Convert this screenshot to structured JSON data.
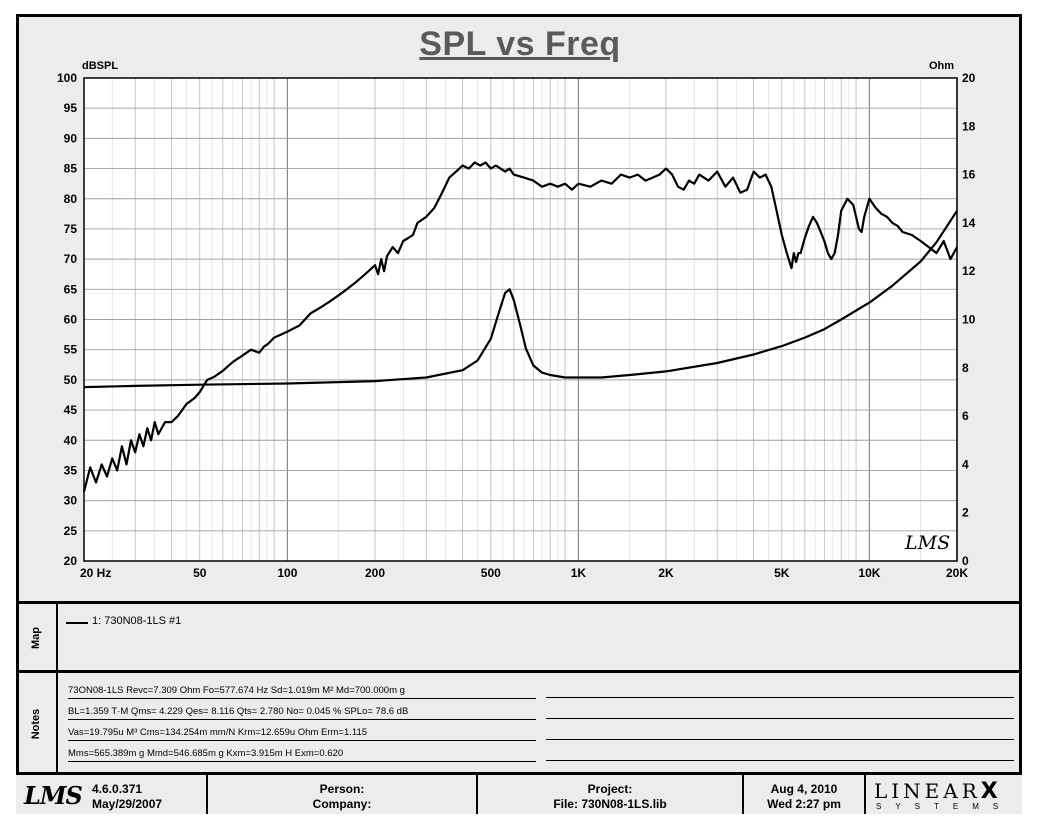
{
  "chart_data": {
    "type": "line",
    "title": "SPL vs Freq",
    "ylabel": "dBSPL",
    "y2label": "Ohm",
    "xscale": "log",
    "xlim": [
      20,
      20000
    ],
    "ylim": [
      20,
      100
    ],
    "y2lim": [
      0,
      20
    ],
    "grid": true,
    "x_tick_labels": [
      "20 Hz",
      "50",
      "100",
      "200",
      "500",
      "1K",
      "2K",
      "5K",
      "10K",
      "20K"
    ],
    "x_tick_values": [
      20,
      50,
      100,
      200,
      500,
      1000,
      2000,
      5000,
      10000,
      20000
    ],
    "y_ticks": [
      20,
      25,
      30,
      35,
      40,
      45,
      50,
      55,
      60,
      65,
      70,
      75,
      80,
      85,
      90,
      95,
      100
    ],
    "y2_ticks": [
      0,
      2,
      4,
      6,
      8,
      10,
      12,
      14,
      16,
      18,
      20
    ],
    "series": [
      {
        "name": "1: 730N08-1LS #1",
        "axis": "left",
        "x": [
          20,
          21,
          22,
          23,
          24,
          25,
          26,
          27,
          28,
          29,
          30,
          31,
          32,
          33,
          34,
          35,
          36,
          38,
          40,
          42,
          45,
          48,
          50,
          53,
          56,
          60,
          65,
          70,
          75,
          80,
          83,
          86,
          90,
          95,
          100,
          110,
          120,
          130,
          140,
          150,
          160,
          170,
          180,
          190,
          195,
          200,
          205,
          210,
          215,
          220,
          230,
          240,
          250,
          260,
          270,
          280,
          300,
          320,
          340,
          360,
          380,
          400,
          420,
          440,
          460,
          480,
          500,
          520,
          540,
          560,
          580,
          600,
          650,
          700,
          750,
          800,
          850,
          900,
          950,
          1000,
          1100,
          1200,
          1300,
          1400,
          1500,
          1600,
          1700,
          1800,
          1900,
          2000,
          2100,
          2200,
          2300,
          2400,
          2500,
          2600,
          2800,
          3000,
          3200,
          3400,
          3600,
          3800,
          4000,
          4200,
          4400,
          4600,
          4800,
          5000,
          5200,
          5400,
          5500,
          5600,
          5700,
          5800,
          6000,
          6200,
          6400,
          6600,
          6800,
          7000,
          7200,
          7400,
          7600,
          7800,
          8000,
          8200,
          8400,
          8600,
          8800,
          9000,
          9200,
          9400,
          9600,
          9800,
          10000,
          10500,
          11000,
          11500,
          12000,
          12500,
          13000,
          14000,
          15000,
          16000,
          17000,
          18000,
          19000,
          20000
        ],
        "values": [
          31.5,
          35.5,
          33,
          36,
          34,
          37,
          35,
          39,
          36,
          40,
          38,
          41,
          39,
          42,
          40,
          43,
          41,
          43,
          43,
          44,
          46,
          47,
          48,
          50,
          50.5,
          51.5,
          53,
          54,
          55,
          54.5,
          55.5,
          56,
          57,
          57.5,
          58,
          59,
          61,
          62,
          63,
          64,
          65,
          66,
          67,
          68,
          68.5,
          69,
          67.5,
          70,
          68,
          70.5,
          72,
          71,
          73,
          73.5,
          74,
          76,
          77,
          78.5,
          81,
          83.5,
          84.5,
          85.5,
          85,
          86,
          85.5,
          86,
          85,
          85.5,
          85,
          84.5,
          85,
          84,
          83.5,
          83,
          82,
          82.5,
          82,
          82.5,
          81.5,
          82.5,
          82,
          83,
          82.5,
          84,
          83.5,
          84,
          83,
          83.5,
          84,
          85,
          84,
          82,
          81.5,
          83,
          82.5,
          84,
          83,
          84.5,
          82,
          83.5,
          81,
          81.5,
          84.5,
          83.5,
          84,
          82,
          78,
          74,
          71,
          68.5,
          71,
          69.5,
          71,
          71,
          73.5,
          75.5,
          77,
          76,
          74.5,
          73,
          71,
          70,
          71,
          74,
          78,
          79,
          80,
          79.5,
          79,
          77,
          75,
          74.5,
          77,
          78.5,
          80,
          78.5,
          77.5,
          77,
          76,
          75.5,
          74.5,
          74,
          73,
          72,
          71,
          73,
          70,
          72
        ]
      },
      {
        "name": "Impedance",
        "axis": "right",
        "x": [
          20,
          30,
          50,
          100,
          200,
          300,
          400,
          450,
          500,
          530,
          560,
          580,
          600,
          630,
          660,
          700,
          750,
          800,
          900,
          1000,
          1200,
          1500,
          2000,
          3000,
          4000,
          5000,
          6000,
          7000,
          8000,
          10000,
          12000,
          15000,
          17000,
          20000
        ],
        "values": [
          7.2,
          7.25,
          7.3,
          7.35,
          7.45,
          7.6,
          7.9,
          8.3,
          9.2,
          10.2,
          11.1,
          11.25,
          10.8,
          9.8,
          8.8,
          8.1,
          7.8,
          7.7,
          7.6,
          7.6,
          7.6,
          7.7,
          7.85,
          8.2,
          8.55,
          8.9,
          9.25,
          9.6,
          10.0,
          10.7,
          11.4,
          12.4,
          13.2,
          14.5
        ]
      }
    ]
  },
  "header": {
    "title": "SPL vs Freq",
    "left_unit": "dBSPL",
    "right_unit": "Ohm"
  },
  "map": {
    "label": "Map",
    "entries": [
      "1: 730N08-1LS #1"
    ]
  },
  "notes": {
    "label": "Notes",
    "lines": [
      "73ON08-1LS Revc=7.309 Ohm  Fo=577.674 Hz  Sd=1.019m M² Md=700.000m g",
      "BL=1.359 T·M  Qms= 4.229  Qes= 8.116  Qts= 2.780  No= 0.045 %  SPLo= 78.6 dB",
      "Vas=19.795u M³  Cms=134.254m mm/N  Krm=12.659u Ohm  Erm=1.115",
      "Mms=565.389m g  Mmd=546.685m g  Kxm=3.915m H  Exm=0.620"
    ]
  },
  "footer": {
    "logo": "LMS",
    "version": "4.6.0.371",
    "version_date": "May/29/2007",
    "person_label": "Person:",
    "company_label": "Company:",
    "project_label": "Project:",
    "file_label": "File: 730N08-1LS.lib",
    "date": "Aug  4, 2010",
    "time": "Wed  2:27 pm",
    "brand_main": "LINEAR",
    "brand_x": "X",
    "brand_sub": "SYSTEMS"
  },
  "plot_logo": "LMS"
}
